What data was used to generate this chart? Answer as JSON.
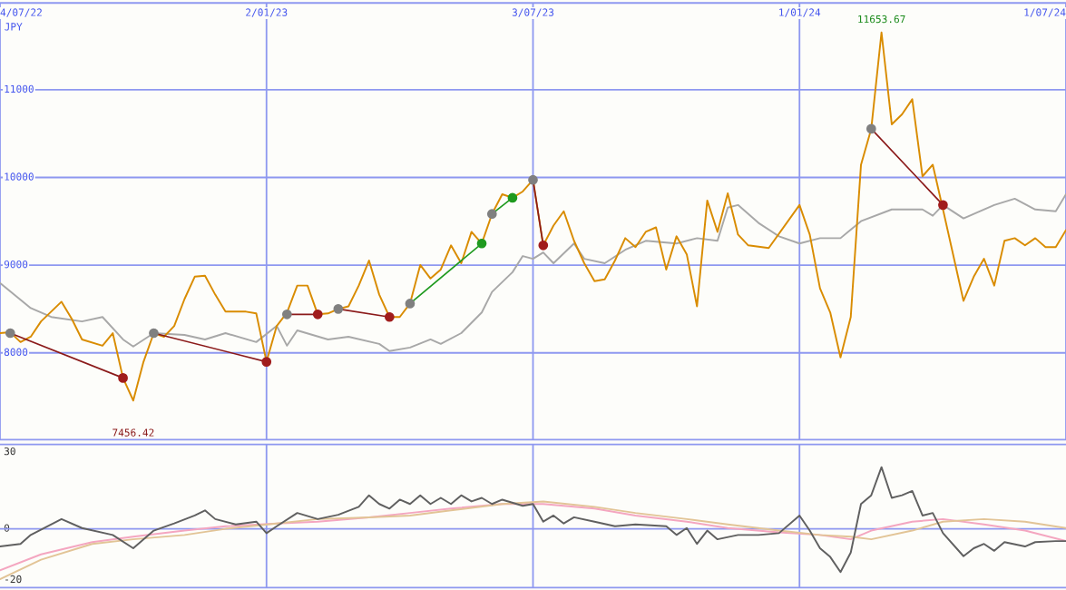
{
  "chart_data": [
    {
      "type": "line",
      "ylabel": "JPY",
      "xlim": [
        "2022-07-04",
        "2024-07-01"
      ],
      "xticks": [
        {
          "value": "2022-07-04",
          "label": "4/07/22"
        },
        {
          "value": "2023-01-02",
          "label": "2/01/23"
        },
        {
          "value": "2023-07-03",
          "label": "3/07/23"
        },
        {
          "value": "2024-01-01",
          "label": "1/01/24"
        },
        {
          "value": "2024-07-01",
          "label": "1/07/24"
        }
      ],
      "ylim": [
        7010,
        11990
      ],
      "yticks": [
        8000,
        9000,
        10000,
        11000
      ],
      "grid": true,
      "marker": "none",
      "annotations": [
        {
          "text": "11653.67",
          "x": "2024-02-26",
          "y": 11653.67
        },
        {
          "text": "7456.42",
          "x": "2022-10-03",
          "y": 7456.42
        }
      ],
      "series": [
        {
          "color": "#a8a8a8",
          "x": [
            "2022-07-04",
            "2022-07-25",
            "2022-08-08",
            "2022-08-29",
            "2022-09-12",
            "2022-09-26",
            "2022-10-03",
            "2022-10-17",
            "2022-11-07",
            "2022-11-21",
            "2022-12-05",
            "2022-12-26",
            "2023-01-09",
            "2023-01-16",
            "2023-01-23",
            "2023-02-13",
            "2023-02-27",
            "2023-03-20",
            "2023-03-27",
            "2023-04-10",
            "2023-04-24",
            "2023-05-01",
            "2023-05-15",
            "2023-05-29",
            "2023-06-05",
            "2023-06-19",
            "2023-06-26",
            "2023-07-03",
            "2023-07-10",
            "2023-07-17",
            "2023-07-31",
            "2023-08-07",
            "2023-08-21",
            "2023-09-04",
            "2023-09-18",
            "2023-10-09",
            "2023-10-23",
            "2023-11-06",
            "2023-11-13",
            "2023-11-20",
            "2023-12-04",
            "2023-12-18",
            "2024-01-01",
            "2024-01-15",
            "2024-01-29",
            "2024-02-12",
            "2024-03-04",
            "2024-03-25",
            "2024-04-01",
            "2024-04-08",
            "2024-04-22",
            "2024-05-13",
            "2024-05-27",
            "2024-06-10",
            "2024-06-24",
            "2024-07-01"
          ],
          "values": [
            8797,
            8511,
            8409,
            8358,
            8409,
            8153,
            8072,
            8225,
            8204,
            8153,
            8225,
            8123,
            8307,
            8082,
            8256,
            8153,
            8184,
            8102,
            8020,
            8061,
            8153,
            8102,
            8225,
            8460,
            8695,
            8920,
            9104,
            9073,
            9145,
            9022,
            9247,
            9073,
            9022,
            9175,
            9278,
            9247,
            9308,
            9278,
            9656,
            9686,
            9482,
            9329,
            9247,
            9308,
            9308,
            9502,
            9635,
            9635,
            9564,
            9686,
            9533,
            9686,
            9758,
            9635,
            9615,
            9809
          ]
        },
        {
          "color": "#d98c00",
          "x": [
            "2022-07-04",
            "2022-07-11",
            "2022-07-18",
            "2022-07-25",
            "2022-08-01",
            "2022-08-15",
            "2022-08-22",
            "2022-08-29",
            "2022-09-12",
            "2022-09-19",
            "2022-09-26",
            "2022-10-03",
            "2022-10-10",
            "2022-10-17",
            "2022-10-24",
            "2022-10-31",
            "2022-11-07",
            "2022-11-14",
            "2022-11-21",
            "2022-11-28",
            "2022-12-05",
            "2022-12-19",
            "2022-12-26",
            "2023-01-02",
            "2023-01-09",
            "2023-01-16",
            "2023-01-23",
            "2023-01-30",
            "2023-02-06",
            "2023-02-13",
            "2023-02-20",
            "2023-02-27",
            "2023-03-06",
            "2023-03-13",
            "2023-03-20",
            "2023-03-27",
            "2023-04-03",
            "2023-04-10",
            "2023-04-17",
            "2023-04-24",
            "2023-05-01",
            "2023-05-08",
            "2023-05-15",
            "2023-05-22",
            "2023-05-29",
            "2023-06-05",
            "2023-06-12",
            "2023-06-19",
            "2023-06-26",
            "2023-07-03",
            "2023-07-10",
            "2023-07-17",
            "2023-07-24",
            "2023-07-31",
            "2023-08-07",
            "2023-08-14",
            "2023-08-21",
            "2023-08-28",
            "2023-09-04",
            "2023-09-11",
            "2023-09-18",
            "2023-09-25",
            "2023-10-02",
            "2023-10-09",
            "2023-10-16",
            "2023-10-23",
            "2023-10-30",
            "2023-11-06",
            "2023-11-13",
            "2023-11-20",
            "2023-11-27",
            "2023-12-11",
            "2024-01-01",
            "2024-01-08",
            "2024-01-15",
            "2024-01-22",
            "2024-01-29",
            "2024-02-05",
            "2024-02-12",
            "2024-02-19",
            "2024-02-26",
            "2024-03-04",
            "2024-03-11",
            "2024-03-18",
            "2024-03-25",
            "2024-04-01",
            "2024-04-08",
            "2024-04-22",
            "2024-04-29",
            "2024-05-06",
            "2024-05-13",
            "2024-05-20",
            "2024-05-27",
            "2024-06-03",
            "2024-06-10",
            "2024-06-17",
            "2024-06-24",
            "2024-07-01"
          ],
          "values": [
            8225,
            8235,
            8123,
            8184,
            8358,
            8583,
            8388,
            8153,
            8082,
            8225,
            7714,
            7456.42,
            7898,
            8225,
            8184,
            8307,
            8613,
            8869,
            8879,
            8664,
            8470,
            8470,
            8450,
            7898,
            8307,
            8460,
            8767,
            8767,
            8439,
            8450,
            8501,
            8531,
            8767,
            9053,
            8664,
            8409,
            8409,
            8562,
            9002,
            8848,
            8950,
            9226,
            9022,
            9380,
            9247,
            9584,
            9809,
            9768,
            9840,
            9972,
            9226,
            9451,
            9615,
            9278,
            9022,
            8818,
            8838,
            9053,
            9308,
            9206,
            9380,
            9431,
            8950,
            9329,
            9124,
            8531,
            9737,
            9380,
            9819,
            9349,
            9226,
            9196,
            9686,
            9349,
            8736,
            8460,
            7949,
            8409,
            10146,
            10555,
            11653.67,
            10606,
            10719,
            10892,
            10013,
            10146,
            9635,
            8593,
            8869,
            9073,
            8767,
            9278,
            9308,
            9226,
            9308,
            9206,
            9206,
            9400
          ]
        },
        {
          "color": "#8b1a1a",
          "marker": "circle",
          "colors": [
            "#808080",
            "#a01c1c"
          ],
          "x": [
            "2022-07-11",
            "2022-09-26"
          ],
          "values": [
            8225,
            7714
          ]
        },
        {
          "color": "#8b1a1a",
          "marker": "circle",
          "colors": [
            "#808080",
            "#a01c1c"
          ],
          "x": [
            "2022-10-17",
            "2023-01-02"
          ],
          "values": [
            8225,
            7898
          ]
        },
        {
          "color": "#8b1a1a",
          "marker": "circle",
          "colors": [
            "#808080",
            "#a01c1c"
          ],
          "x": [
            "2023-01-16",
            "2023-02-06"
          ],
          "values": [
            8439,
            8439
          ]
        },
        {
          "color": "#8b1a1a",
          "marker": "circle",
          "colors": [
            "#808080",
            "#a01c1c"
          ],
          "x": [
            "2023-02-20",
            "2023-03-27"
          ],
          "values": [
            8501,
            8409
          ]
        },
        {
          "color": "#1f9a1f",
          "marker": "circle",
          "colors": [
            "#808080",
            "#1f9a1f"
          ],
          "x": [
            "2023-04-10",
            "2023-05-29"
          ],
          "values": [
            8562,
            9247
          ]
        },
        {
          "color": "#1f9a1f",
          "marker": "circle",
          "colors": [
            "#808080",
            "#1f9a1f"
          ],
          "x": [
            "2023-06-05",
            "2023-06-19"
          ],
          "values": [
            9584,
            9768
          ]
        },
        {
          "color": "#8b1a1a",
          "marker": "circle",
          "colors": [
            "#808080",
            "#a01c1c"
          ],
          "x": [
            "2023-07-03",
            "2023-07-10"
          ],
          "values": [
            9972,
            9226
          ]
        },
        {
          "color": "#8b1a1a",
          "marker": "circle",
          "colors": [
            "#808080",
            "#a01c1c"
          ],
          "x": [
            "2024-02-19",
            "2024-04-08"
          ],
          "values": [
            10555,
            9686
          ]
        }
      ]
    },
    {
      "type": "line",
      "xlim": [
        "2022-07-04",
        "2024-07-01"
      ],
      "xticks": [
        {
          "value": "2023-01-02",
          "label": null
        },
        {
          "value": "2023-07-03",
          "label": null
        },
        {
          "value": "2024-01-01",
          "label": null
        }
      ],
      "ylim": [
        -23,
        33
      ],
      "yticks": [
        -20,
        0,
        30
      ],
      "grid": "x",
      "tick_labels": "y",
      "marker": "none",
      "ref_lines": [
        {
          "axis": "y",
          "value": 0,
          "color": "#8e98f0"
        }
      ],
      "series": [
        {
          "color": "#f4a6c0",
          "x": [
            "2022-07-04",
            "2022-08-01",
            "2022-09-05",
            "2022-10-03",
            "2022-11-07",
            "2022-12-05",
            "2023-01-09",
            "2023-02-06",
            "2023-03-13",
            "2023-04-10",
            "2023-05-08",
            "2023-06-12",
            "2023-07-10",
            "2023-08-14",
            "2023-09-11",
            "2023-10-16",
            "2023-11-13",
            "2023-12-18",
            "2024-01-15",
            "2024-02-05",
            "2024-02-19",
            "2024-03-18",
            "2024-04-08",
            "2024-05-06",
            "2024-06-03",
            "2024-07-01"
          ],
          "values": [
            -16.2,
            -10.0,
            -5.2,
            -3.1,
            -0.7,
            1.0,
            2.1,
            2.8,
            4.5,
            6.2,
            7.9,
            9.7,
            9.7,
            7.9,
            5.2,
            2.8,
            0.3,
            -1.4,
            -2.4,
            -4.1,
            -0.7,
            2.8,
            3.8,
            1.7,
            -0.7,
            -4.8
          ]
        },
        {
          "color": "#e2c496",
          "x": [
            "2022-07-04",
            "2022-08-01",
            "2022-09-05",
            "2022-10-03",
            "2022-11-07",
            "2022-12-05",
            "2023-01-09",
            "2023-02-06",
            "2023-03-13",
            "2023-04-10",
            "2023-05-08",
            "2023-06-12",
            "2023-07-10",
            "2023-08-14",
            "2023-09-11",
            "2023-10-16",
            "2023-11-13",
            "2023-12-18",
            "2024-01-15",
            "2024-02-05",
            "2024-02-19",
            "2024-03-18",
            "2024-04-08",
            "2024-05-06",
            "2024-06-03",
            "2024-07-01"
          ],
          "values": [
            -19.7,
            -12.1,
            -5.9,
            -4.1,
            -2.4,
            0.0,
            2.1,
            3.8,
            4.5,
            5.2,
            7.2,
            9.7,
            10.7,
            8.6,
            6.2,
            3.8,
            1.7,
            -0.7,
            -2.4,
            -3.1,
            -4.1,
            -0.7,
            2.8,
            3.8,
            2.8,
            0.3
          ]
        },
        {
          "color": "#606060",
          "x": [
            "2022-07-04",
            "2022-07-18",
            "2022-07-25",
            "2022-08-15",
            "2022-08-29",
            "2022-09-19",
            "2022-10-03",
            "2022-10-17",
            "2022-10-31",
            "2022-11-14",
            "2022-11-21",
            "2022-11-28",
            "2022-12-12",
            "2022-12-26",
            "2023-01-02",
            "2023-01-09",
            "2023-01-23",
            "2023-02-06",
            "2023-02-20",
            "2023-03-06",
            "2023-03-13",
            "2023-03-20",
            "2023-03-27",
            "2023-04-03",
            "2023-04-10",
            "2023-04-17",
            "2023-04-24",
            "2023-05-01",
            "2023-05-08",
            "2023-05-15",
            "2023-05-22",
            "2023-05-29",
            "2023-06-05",
            "2023-06-12",
            "2023-06-26",
            "2023-07-03",
            "2023-07-10",
            "2023-07-17",
            "2023-07-24",
            "2023-07-31",
            "2023-08-14",
            "2023-08-28",
            "2023-09-11",
            "2023-10-02",
            "2023-10-09",
            "2023-10-16",
            "2023-10-23",
            "2023-10-30",
            "2023-11-06",
            "2023-11-20",
            "2023-12-04",
            "2023-12-18",
            "2024-01-01",
            "2024-01-08",
            "2024-01-15",
            "2024-01-22",
            "2024-01-29",
            "2024-02-05",
            "2024-02-12",
            "2024-02-19",
            "2024-02-26",
            "2024-03-04",
            "2024-03-11",
            "2024-03-18",
            "2024-03-25",
            "2024-04-01",
            "2024-04-08",
            "2024-04-22",
            "2024-04-29",
            "2024-05-06",
            "2024-05-13",
            "2024-05-20",
            "2024-06-03",
            "2024-06-10",
            "2024-06-24",
            "2024-07-01"
          ],
          "values": [
            -6.9,
            -5.9,
            -2.4,
            3.8,
            0.3,
            -2.4,
            -7.6,
            -0.7,
            2.1,
            5.2,
            7.2,
            3.8,
            1.7,
            2.8,
            -1.7,
            1.0,
            6.2,
            3.8,
            5.5,
            8.6,
            13.1,
            9.7,
            7.9,
            11.4,
            9.7,
            13.1,
            9.7,
            12.1,
            9.7,
            13.1,
            10.7,
            12.1,
            9.7,
            11.4,
            9.0,
            9.7,
            2.8,
            5.2,
            2.1,
            4.5,
            2.8,
            1.0,
            1.7,
            1.0,
            -2.4,
            0.3,
            -5.9,
            -0.7,
            -4.1,
            -2.4,
            -2.4,
            -1.7,
            5.2,
            -0.7,
            -7.6,
            -11.0,
            -16.9,
            -9.3,
            9.7,
            13.1,
            24.1,
            12.1,
            13.1,
            14.8,
            5.2,
            6.2,
            -1.7,
            -10.7,
            -7.6,
            -5.9,
            -8.6,
            -5.2,
            -6.9,
            -5.2,
            -4.8,
            -4.8
          ]
        }
      ]
    }
  ]
}
